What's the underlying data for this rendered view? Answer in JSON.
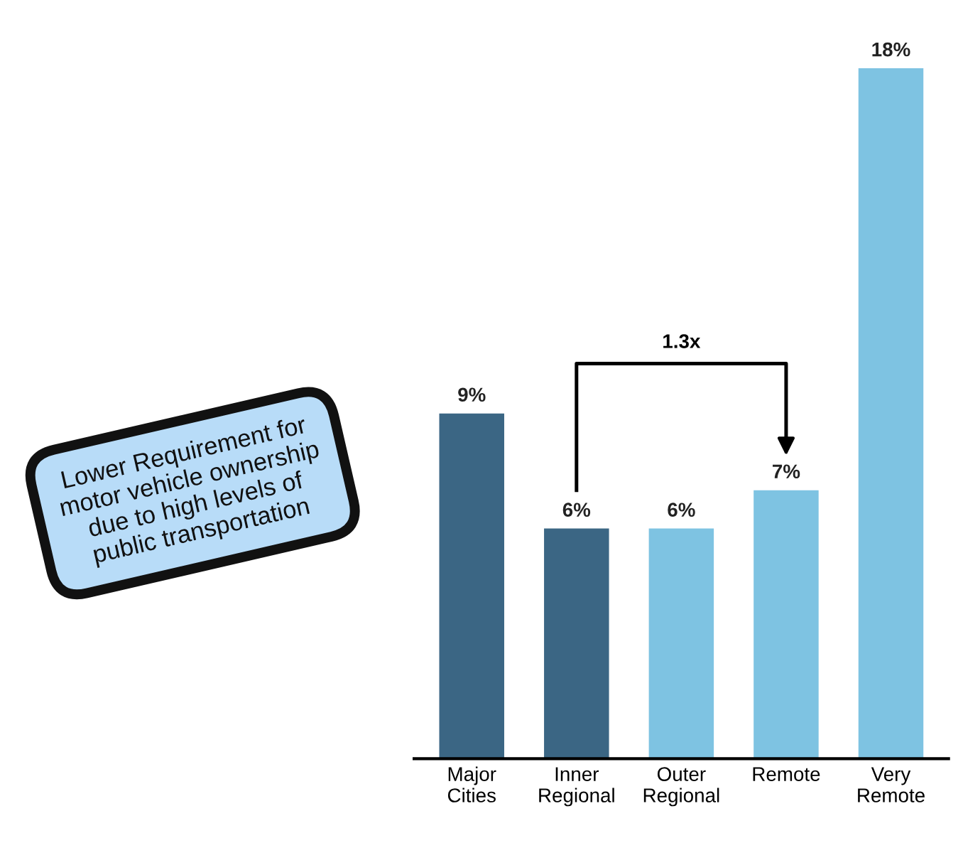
{
  "chart_data": {
    "type": "bar",
    "categories": [
      "Major Cities",
      "Inner Regional",
      "Outer Regional",
      "Remote",
      "Very Remote"
    ],
    "values": [
      9,
      6,
      6,
      7,
      18
    ],
    "value_labels": [
      "9%",
      "6%",
      "6%",
      "7%",
      "18%"
    ],
    "colors": [
      "#3b6684",
      "#3b6684",
      "#7ec3e2",
      "#7ec3e2",
      "#7ec3e2"
    ],
    "annotations": [
      "Lower Requirement for\nmotor vehicle ownership\ndue to high levels of\npublic transportation",
      "1.3x"
    ],
    "grid": false,
    "legend": false
  }
}
